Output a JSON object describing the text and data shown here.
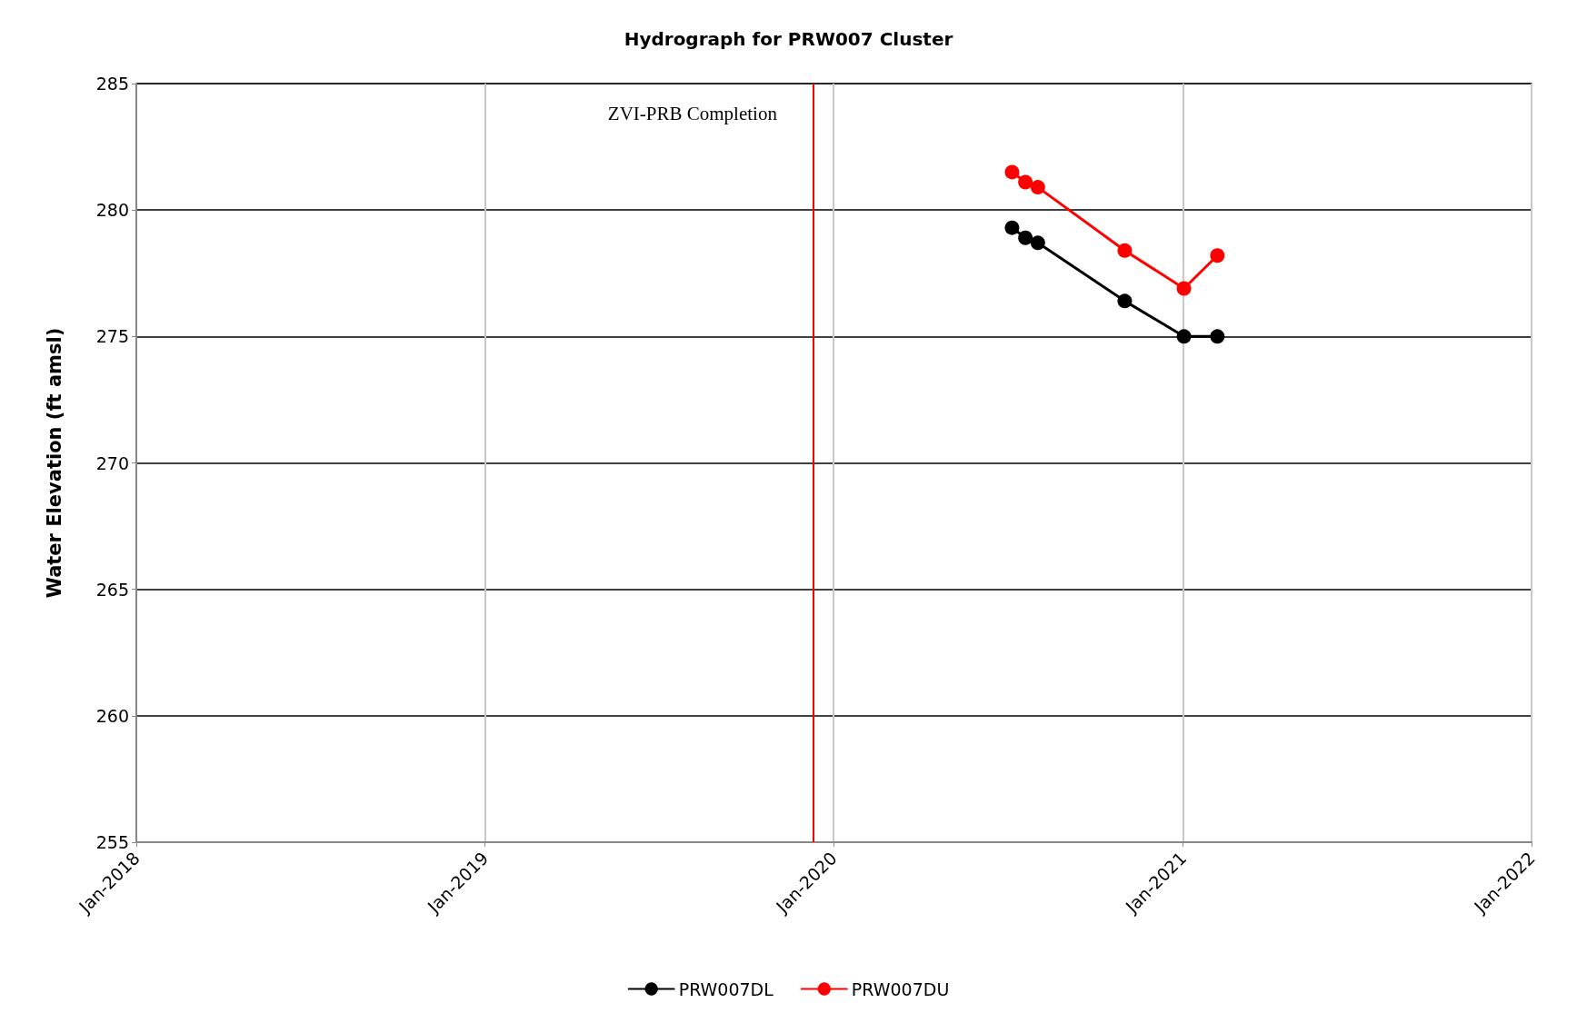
{
  "chart_data": {
    "type": "line",
    "title": "Hydrograph for PRW007 Cluster",
    "ylabel": "Water Elevation (ft amsl)",
    "xlim": [
      "2018-01-01",
      "2022-01-01"
    ],
    "xticks": [
      {
        "value": "2018-01-01",
        "label": "Jan-2018"
      },
      {
        "value": "2019-01-01",
        "label": "Jan-2019"
      },
      {
        "value": "2020-01-01",
        "label": "Jan-2020"
      },
      {
        "value": "2021-01-01",
        "label": "Jan-2021"
      },
      {
        "value": "2022-01-01",
        "label": "Jan-2022"
      }
    ],
    "ylim": [
      255,
      285
    ],
    "yticks": [
      255,
      260,
      265,
      270,
      275,
      280,
      285
    ],
    "series": [
      {
        "name": "PRW007DL",
        "color": "#000000",
        "x": [
          "2020-07-06",
          "2020-07-20",
          "2020-08-02",
          "2020-11-01",
          "2021-01-02",
          "2021-02-06"
        ],
        "values": [
          279.3,
          278.9,
          278.7,
          276.4,
          275.0,
          275.0
        ]
      },
      {
        "name": "PRW007DU",
        "color": "#ff0000",
        "x": [
          "2020-07-06",
          "2020-07-20",
          "2020-08-02",
          "2020-11-01",
          "2021-01-02",
          "2021-02-06"
        ],
        "values": [
          281.5,
          281.1,
          280.9,
          278.4,
          276.9,
          278.2
        ]
      }
    ],
    "ref_lines": [
      {
        "axis": "x",
        "value": "2019-12-11",
        "label": "ZVI-PRB Completion",
        "color": "#ff0000"
      }
    ],
    "grid": true,
    "legend": "bottom",
    "marker": "circle",
    "line_style": "solid"
  }
}
